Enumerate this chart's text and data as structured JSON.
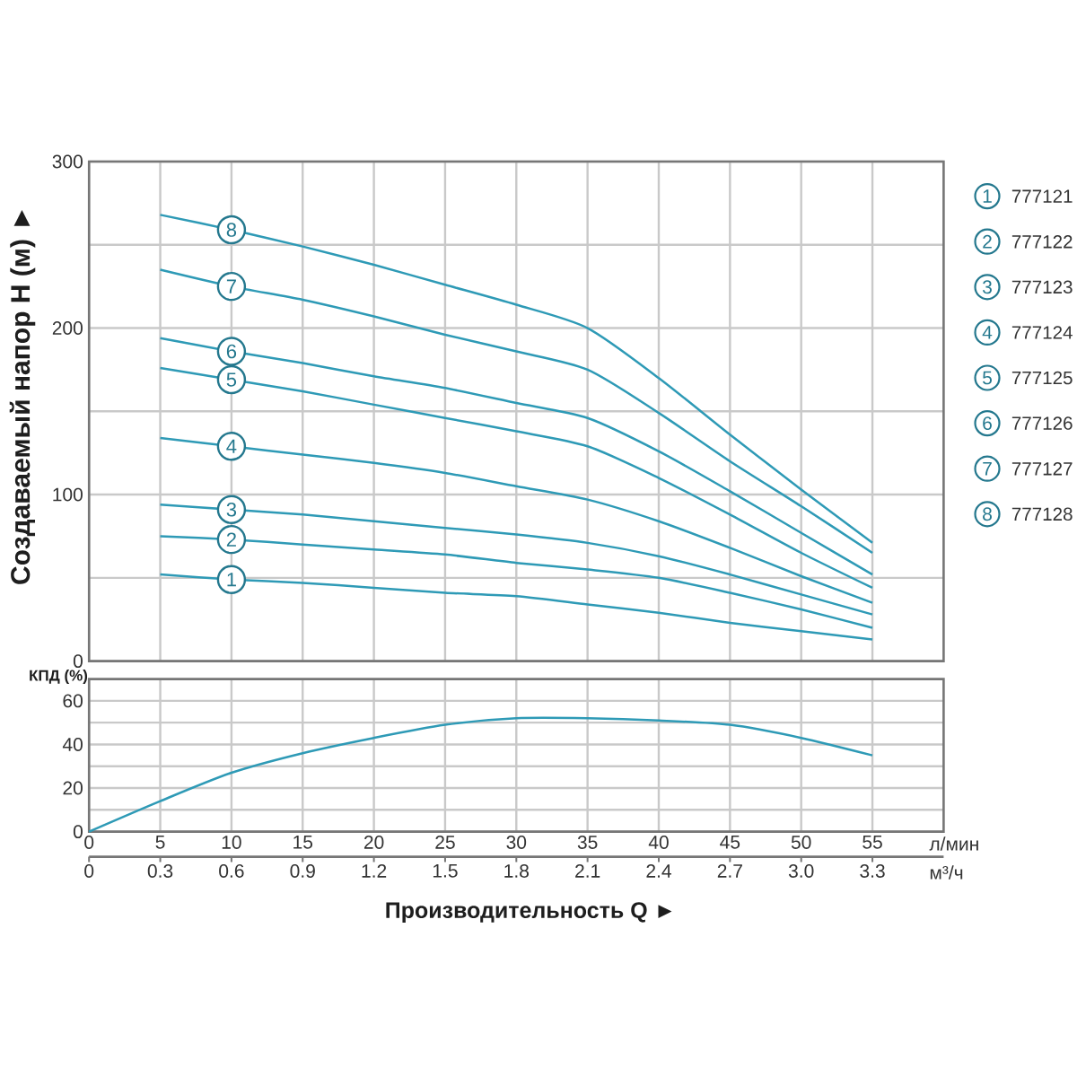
{
  "chart_data": [
    {
      "type": "line",
      "ylabel": "Создаваемый напор H (м) ►",
      "x": [
        5,
        10,
        15,
        20,
        25,
        30,
        35,
        40,
        45,
        50,
        55
      ],
      "xlim": [
        0,
        60
      ],
      "xticks": [
        0,
        5,
        10,
        15,
        20,
        25,
        30,
        35,
        40,
        45,
        50,
        55
      ],
      "ylim": [
        0,
        300
      ],
      "yticks": [
        0,
        {
          "value": 50,
          "label": null
        },
        100,
        {
          "value": 150,
          "label": null
        },
        200,
        {
          "value": 250,
          "label": null
        },
        300
      ],
      "grid": true,
      "legend": "right",
      "tick_labels": "y",
      "series": [
        {
          "name": "777121",
          "color": "#2e9ab6",
          "values": [
            52,
            49,
            47,
            44,
            41,
            39,
            34,
            29,
            23,
            18,
            13
          ]
        },
        {
          "name": "777122",
          "color": "#2e9ab6",
          "values": [
            75,
            73,
            70,
            67,
            64,
            59,
            55,
            50,
            41,
            31,
            20
          ]
        },
        {
          "name": "777123",
          "color": "#2e9ab6",
          "values": [
            94,
            91,
            88,
            84,
            80,
            76,
            71,
            63,
            52,
            40,
            28
          ]
        },
        {
          "name": "777124",
          "color": "#2e9ab6",
          "values": [
            134,
            129,
            124,
            119,
            113,
            105,
            97,
            84,
            68,
            51,
            35
          ]
        },
        {
          "name": "777125",
          "color": "#2e9ab6",
          "values": [
            176,
            169,
            162,
            154,
            146,
            138,
            129,
            110,
            88,
            65,
            44
          ]
        },
        {
          "name": "777126",
          "color": "#2e9ab6",
          "values": [
            194,
            186,
            179,
            171,
            164,
            155,
            146,
            126,
            102,
            77,
            52
          ]
        },
        {
          "name": "777127",
          "color": "#2e9ab6",
          "values": [
            235,
            225,
            217,
            207,
            196,
            186,
            175,
            149,
            120,
            93,
            65
          ]
        },
        {
          "name": "777128",
          "color": "#2e9ab6",
          "values": [
            268,
            259,
            249,
            238,
            226,
            214,
            200,
            170,
            136,
            103,
            71
          ]
        }
      ],
      "annotations": [
        "1",
        "2",
        "3",
        "4",
        "5",
        "6",
        "7",
        "8"
      ]
    },
    {
      "type": "line",
      "ylabel": "КПД (%)",
      "xlabel": "Производительность Q ►",
      "x": [
        0,
        5,
        10,
        15,
        20,
        25,
        30,
        35,
        40,
        45,
        50,
        55
      ],
      "xlim": [
        0,
        60
      ],
      "xticks": [
        0,
        5,
        10,
        15,
        20,
        25,
        30,
        35,
        40,
        45,
        50,
        55
      ],
      "x2lim": [
        0,
        3.6
      ],
      "x2ticks": [
        0,
        0.3,
        0.6,
        0.9,
        1.2,
        1.5,
        1.8,
        2.1,
        2.4,
        2.7,
        {
          "value": 3.0,
          "label": "3.0"
        },
        3.3
      ],
      "ylim": [
        0,
        70
      ],
      "yticks": [
        0,
        {
          "value": 10,
          "label": null
        },
        20,
        {
          "value": 30,
          "label": null
        },
        40,
        {
          "value": 50,
          "label": null
        },
        60
      ],
      "grid": true,
      "series": [
        {
          "color": "#2e9ab6",
          "values": [
            0,
            14,
            27,
            36,
            43,
            49,
            52,
            52,
            51,
            49,
            43,
            35
          ]
        }
      ],
      "annotations": [
        "л/мин",
        "м³/ч"
      ]
    }
  ]
}
